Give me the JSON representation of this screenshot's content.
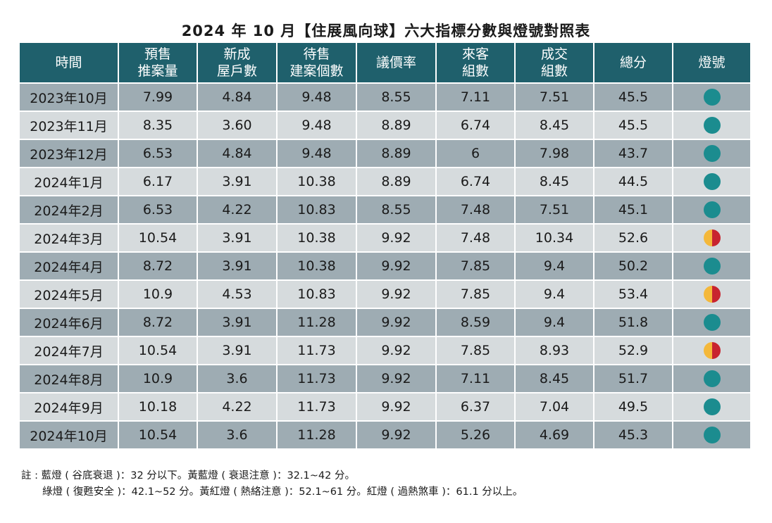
{
  "title": "2024 年 10 月【住展風向球】六大指標分數與燈號對照表",
  "table": {
    "header": [
      [
        "時間"
      ],
      [
        "預售",
        "推案量"
      ],
      [
        "新成",
        "屋戶數"
      ],
      [
        "待售",
        "建案個數"
      ],
      [
        "議價率"
      ],
      [
        "來客",
        "組數"
      ],
      [
        "成交",
        "組數"
      ],
      [
        "總分"
      ],
      [
        "燈號"
      ]
    ],
    "light_colors": {
      "green": [
        "#1b8c8f"
      ],
      "yellow-red": [
        "#f4b83a",
        "#c8242f"
      ]
    },
    "rows": [
      {
        "cells": [
          "2023年10月",
          "7.99",
          "4.84",
          "9.48",
          "8.55",
          "7.11",
          "7.51",
          "45.5"
        ],
        "light": "green"
      },
      {
        "cells": [
          "2023年11月",
          "8.35",
          "3.60",
          "9.48",
          "8.89",
          "6.74",
          "8.45",
          "45.5"
        ],
        "light": "green"
      },
      {
        "cells": [
          "2023年12月",
          "6.53",
          "4.84",
          "9.48",
          "8.89",
          "6",
          "7.98",
          "43.7"
        ],
        "light": "green"
      },
      {
        "cells": [
          "2024年1月",
          "6.17",
          "3.91",
          "10.38",
          "8.89",
          "6.74",
          "8.45",
          "44.5"
        ],
        "light": "green"
      },
      {
        "cells": [
          "2024年2月",
          "6.53",
          "4.22",
          "10.83",
          "8.55",
          "7.48",
          "7.51",
          "45.1"
        ],
        "light": "green"
      },
      {
        "cells": [
          "2024年3月",
          "10.54",
          "3.91",
          "10.38",
          "9.92",
          "7.48",
          "10.34",
          "52.6"
        ],
        "light": "yellow-red"
      },
      {
        "cells": [
          "2024年4月",
          "8.72",
          "3.91",
          "10.38",
          "9.92",
          "7.85",
          "9.4",
          "50.2"
        ],
        "light": "green"
      },
      {
        "cells": [
          "2024年5月",
          "10.9",
          "4.53",
          "10.83",
          "9.92",
          "7.85",
          "9.4",
          "53.4"
        ],
        "light": "yellow-red"
      },
      {
        "cells": [
          "2024年6月",
          "8.72",
          "3.91",
          "11.28",
          "9.92",
          "8.59",
          "9.4",
          "51.8"
        ],
        "light": "green"
      },
      {
        "cells": [
          "2024年7月",
          "10.54",
          "3.91",
          "11.73",
          "9.92",
          "7.85",
          "8.93",
          "52.9"
        ],
        "light": "yellow-red"
      },
      {
        "cells": [
          "2024年8月",
          "10.9",
          "3.6",
          "11.73",
          "9.92",
          "7.11",
          "8.45",
          "51.7"
        ],
        "light": "green"
      },
      {
        "cells": [
          "2024年9月",
          "10.18",
          "4.22",
          "11.73",
          "9.92",
          "6.37",
          "7.04",
          "49.5"
        ],
        "light": "green"
      },
      {
        "cells": [
          "2024年10月",
          "10.54",
          "3.6",
          "11.28",
          "9.92",
          "5.26",
          "4.69",
          "45.3"
        ],
        "light": "green"
      }
    ]
  },
  "notes": [
    "註 : 藍燈 ( 谷底衰退 )：32 分以下。黃藍燈 ( 衰退注意 )：32.1~42 分。",
    "綠燈 ( 復甦安全 )：42.1~52 分。黃紅燈 ( 熱絡注意 )：52.1~61 分。紅燈 ( 過熱煞車 )：61.1 分以上。"
  ]
}
